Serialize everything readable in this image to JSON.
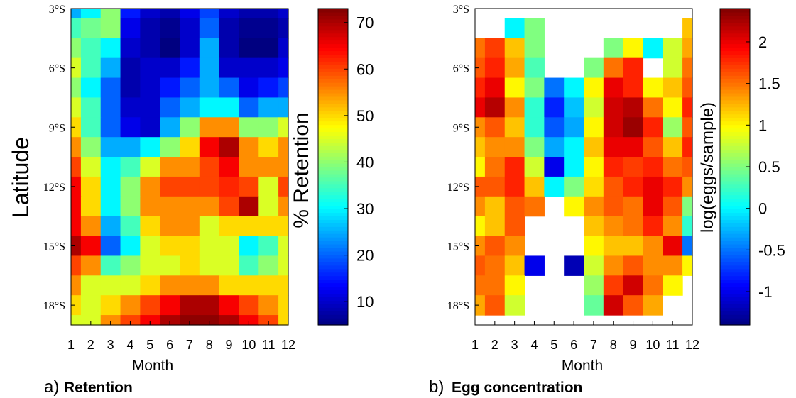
{
  "chart_data": [
    {
      "type": "heatmap",
      "panel": "a)",
      "title": "Retention",
      "xlabel": "Month",
      "ylabel": "Latitude",
      "colorbar_label": "% Retention",
      "colorbar_ticks": [
        "10",
        "20",
        "30",
        "40",
        "50",
        "60",
        "70"
      ],
      "zlim": [
        5,
        73
      ],
      "x_ticks": [
        "1",
        "2",
        "3",
        "4",
        "5",
        "6",
        "7",
        "8",
        "9",
        "10",
        "11",
        "12"
      ],
      "y_ticks": [
        "3°S",
        "6°S",
        "9°S",
        "12°S",
        "15°S",
        "18°S"
      ],
      "xlim": [
        1,
        12
      ],
      "ylim": [
        -19,
        -3
      ],
      "rows_latitude": [
        3,
        4,
        5,
        6,
        7,
        8,
        9,
        10,
        11,
        12,
        13,
        14,
        15,
        16,
        17,
        18,
        19
      ],
      "values": [
        [
          25,
          30,
          40,
          15,
          10,
          8,
          12,
          18,
          10,
          8,
          8,
          10
        ],
        [
          35,
          38,
          40,
          12,
          8,
          6,
          10,
          20,
          8,
          6,
          6,
          8
        ],
        [
          40,
          35,
          30,
          10,
          8,
          5,
          10,
          25,
          8,
          5,
          5,
          10
        ],
        [
          45,
          35,
          25,
          8,
          10,
          10,
          15,
          25,
          10,
          10,
          10,
          12
        ],
        [
          40,
          30,
          20,
          8,
          10,
          15,
          20,
          25,
          20,
          12,
          15,
          18
        ],
        [
          45,
          35,
          20,
          10,
          10,
          20,
          25,
          30,
          30,
          20,
          25,
          25
        ],
        [
          50,
          35,
          20,
          12,
          10,
          25,
          40,
          55,
          55,
          40,
          40,
          45
        ],
        [
          55,
          40,
          25,
          25,
          30,
          40,
          50,
          65,
          70,
          55,
          50,
          55
        ],
        [
          60,
          45,
          30,
          35,
          45,
          55,
          55,
          60,
          65,
          55,
          55,
          55
        ],
        [
          65,
          50,
          30,
          40,
          55,
          60,
          60,
          60,
          62,
          60,
          45,
          60
        ],
        [
          65,
          50,
          30,
          40,
          55,
          55,
          55,
          55,
          60,
          70,
          45,
          55
        ],
        [
          65,
          55,
          25,
          35,
          50,
          55,
          55,
          45,
          50,
          50,
          50,
          50
        ],
        [
          70,
          65,
          20,
          30,
          45,
          50,
          50,
          45,
          45,
          30,
          35,
          45
        ],
        [
          60,
          55,
          35,
          40,
          45,
          45,
          50,
          45,
          45,
          35,
          40,
          45
        ],
        [
          55,
          45,
          45,
          45,
          50,
          55,
          55,
          55,
          50,
          50,
          50,
          50
        ],
        [
          50,
          45,
          50,
          55,
          60,
          65,
          70,
          70,
          65,
          60,
          55,
          50
        ],
        [
          45,
          45,
          55,
          60,
          65,
          70,
          72,
          72,
          70,
          65,
          60,
          50
        ]
      ]
    },
    {
      "type": "heatmap",
      "panel": "b)",
      "title": "Egg concentration",
      "xlabel": "Month",
      "ylabel": "",
      "colorbar_label": "log(eggs/sample)",
      "colorbar_ticks": [
        "-1",
        "-0.5",
        "0",
        "0.5",
        "1",
        "1.5",
        "2"
      ],
      "zlim": [
        -1.4,
        2.4
      ],
      "x_ticks": [
        "1",
        "2",
        "3",
        "4",
        "5",
        "6",
        "7",
        "8",
        "9",
        "10",
        "11",
        "12"
      ],
      "y_ticks": [
        "3°S",
        "6°S",
        "9°S",
        "12°S",
        "15°S",
        "18°S"
      ],
      "xlim": [
        1,
        12
      ],
      "ylim": [
        -19,
        -3
      ],
      "rows_latitude": [
        3,
        4,
        5,
        6,
        7,
        8,
        9,
        10,
        11,
        12,
        13,
        14,
        15,
        16,
        17,
        18
      ],
      "values": [
        [
          null,
          null,
          null,
          null,
          null,
          null,
          null,
          null,
          null,
          null,
          null,
          null
        ],
        [
          null,
          null,
          0,
          0.5,
          null,
          null,
          null,
          null,
          null,
          null,
          null,
          1.2
        ],
        [
          1.5,
          1.7,
          1.2,
          0.5,
          null,
          null,
          null,
          0.5,
          1,
          0,
          0.8,
          1.3
        ],
        [
          1.6,
          1.8,
          1.3,
          0.3,
          null,
          null,
          0.5,
          1.5,
          1.8,
          null,
          0.8,
          1.5
        ],
        [
          1.8,
          2,
          1,
          0.5,
          -0.5,
          0,
          1,
          2,
          1.8,
          1,
          1.2,
          1.6
        ],
        [
          2,
          2.2,
          1.4,
          0.2,
          -0.8,
          -0.2,
          0.8,
          2.1,
          2.2,
          1.5,
          1,
          1.8
        ],
        [
          1.4,
          1.6,
          1.2,
          0.2,
          -0.6,
          -0.3,
          1,
          2.1,
          2.3,
          1.8,
          0.6,
          1.6
        ],
        [
          1.2,
          1.4,
          1.4,
          0.5,
          -0.3,
          0,
          1.2,
          2,
          2,
          1.6,
          1.2,
          1.8
        ],
        [
          1,
          1.5,
          1.8,
          0.8,
          -1,
          0,
          1,
          1.8,
          1.7,
          1.8,
          1.5,
          1.6
        ],
        [
          1.6,
          1.6,
          1.8,
          1.2,
          0,
          0.5,
          1.1,
          1.6,
          1.8,
          2,
          1.8,
          1.4
        ],
        [
          1.4,
          1.2,
          1.6,
          1.5,
          null,
          1,
          1.4,
          1.6,
          1.5,
          2,
          1.6,
          0.5
        ],
        [
          1,
          1.2,
          1.6,
          null,
          null,
          null,
          1.2,
          1.4,
          1.5,
          1.8,
          1.4,
          0.2
        ],
        [
          1.4,
          1.6,
          1.4,
          null,
          null,
          null,
          1,
          1.2,
          1.2,
          1.4,
          2,
          -0.5
        ],
        [
          1.6,
          1.5,
          1.2,
          -1,
          null,
          -1.2,
          0.8,
          1.4,
          1.6,
          1.4,
          1.4,
          1
        ],
        [
          1.5,
          1.5,
          1,
          null,
          null,
          null,
          0.6,
          1.7,
          2.1,
          1.5,
          1,
          null
        ],
        [
          1.3,
          1.6,
          0.8,
          null,
          null,
          null,
          0.4,
          2.1,
          1.6,
          1.3,
          null,
          null
        ]
      ]
    }
  ]
}
